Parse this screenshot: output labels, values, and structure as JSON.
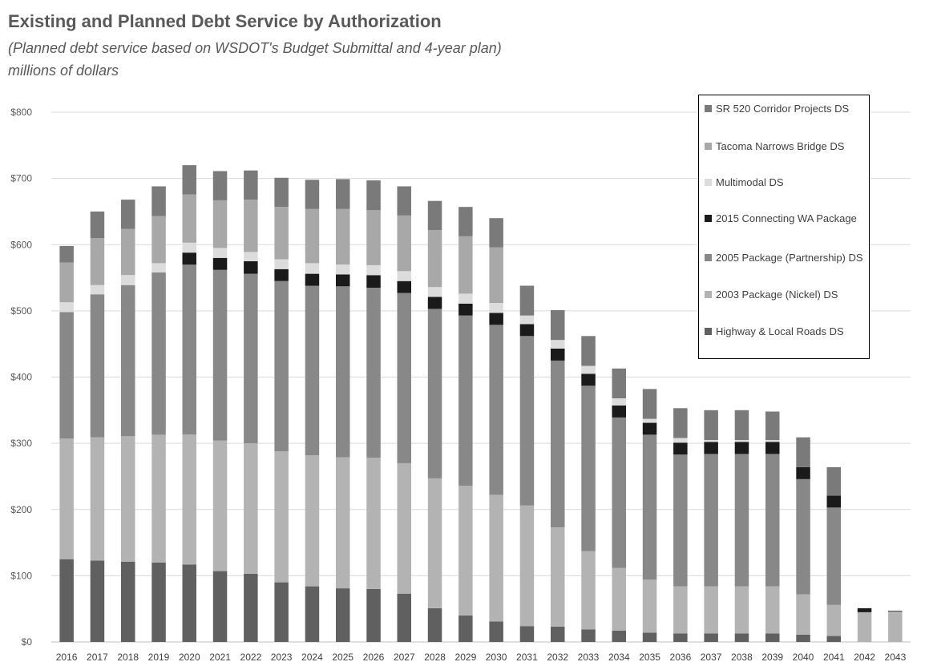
{
  "title": "Existing and Planned Debt Service by Authorization",
  "subtitle": "(Planned debt service based on WSDOT's Budget Submittal and 4-year plan)",
  "units": "millions of dollars",
  "chart_data": {
    "type": "bar",
    "stacked": true,
    "categories": [
      "2016",
      "2017",
      "2018",
      "2019",
      "2020",
      "2021",
      "2022",
      "2023",
      "2024",
      "2025",
      "2026",
      "2027",
      "2028",
      "2029",
      "2030",
      "2031",
      "2032",
      "2033",
      "2034",
      "2035",
      "2036",
      "2037",
      "2038",
      "2039",
      "2040",
      "2041",
      "2042",
      "2043"
    ],
    "ylim": [
      0,
      800
    ],
    "yticks": [
      0,
      100,
      200,
      300,
      400,
      500,
      600,
      700,
      800
    ],
    "ytick_labels": [
      "$0",
      "$100",
      "$200",
      "$300",
      "$400",
      "$500",
      "$600",
      "$700",
      "$800"
    ],
    "grid": true,
    "legend_position": "right",
    "series": [
      {
        "name": "Highway & Local Roads DS",
        "color": "#606060",
        "values": [
          125,
          123,
          121,
          120,
          117,
          107,
          103,
          90,
          84,
          81,
          80,
          73,
          51,
          40,
          31,
          24,
          23,
          19,
          17,
          14,
          13,
          13,
          13,
          13,
          11,
          9,
          0,
          0
        ]
      },
      {
        "name": "2003 Package (Nickel) DS",
        "color": "#b3b3b3",
        "values": [
          182,
          186,
          190,
          193,
          196,
          197,
          197,
          198,
          198,
          198,
          198,
          197,
          196,
          196,
          191,
          182,
          150,
          118,
          95,
          80,
          71,
          71,
          71,
          71,
          61,
          47,
          45,
          46
        ]
      },
      {
        "name": "2005 Package (Partnership) DS",
        "color": "#888888",
        "values": [
          191,
          216,
          228,
          245,
          257,
          258,
          256,
          257,
          256,
          258,
          257,
          257,
          256,
          257,
          257,
          256,
          252,
          250,
          227,
          219,
          199,
          200,
          200,
          200,
          174,
          147,
          0,
          0
        ]
      },
      {
        "name": "2015 Connecting WA Package",
        "color": "#1a1a1a",
        "values": [
          0,
          0,
          0,
          0,
          18,
          18,
          19,
          18,
          18,
          18,
          19,
          18,
          18,
          18,
          18,
          18,
          18,
          18,
          18,
          18,
          18,
          18,
          18,
          18,
          18,
          18,
          6,
          1
        ]
      },
      {
        "name": "Multimodal DS",
        "color": "#dcdcdc",
        "values": [
          15,
          14,
          15,
          14,
          15,
          15,
          14,
          15,
          16,
          15,
          15,
          15,
          15,
          15,
          15,
          13,
          13,
          12,
          11,
          6,
          7,
          3,
          3,
          3,
          0,
          0,
          0,
          0
        ]
      },
      {
        "name": "Tacoma Narrows Bridge DS",
        "color": "#a8a8a8",
        "values": [
          60,
          71,
          70,
          71,
          73,
          72,
          79,
          79,
          82,
          84,
          83,
          84,
          86,
          87,
          84,
          0,
          0,
          0,
          0,
          0,
          0,
          0,
          0,
          0,
          0,
          0,
          0,
          0
        ]
      },
      {
        "name": "SR 520 Corridor Projects DS",
        "color": "#7a7a7a",
        "values": [
          25,
          40,
          44,
          45,
          44,
          44,
          44,
          44,
          44,
          45,
          45,
          44,
          44,
          44,
          44,
          45,
          45,
          45,
          45,
          45,
          45,
          45,
          45,
          43,
          45,
          43,
          0,
          0
        ]
      }
    ]
  }
}
